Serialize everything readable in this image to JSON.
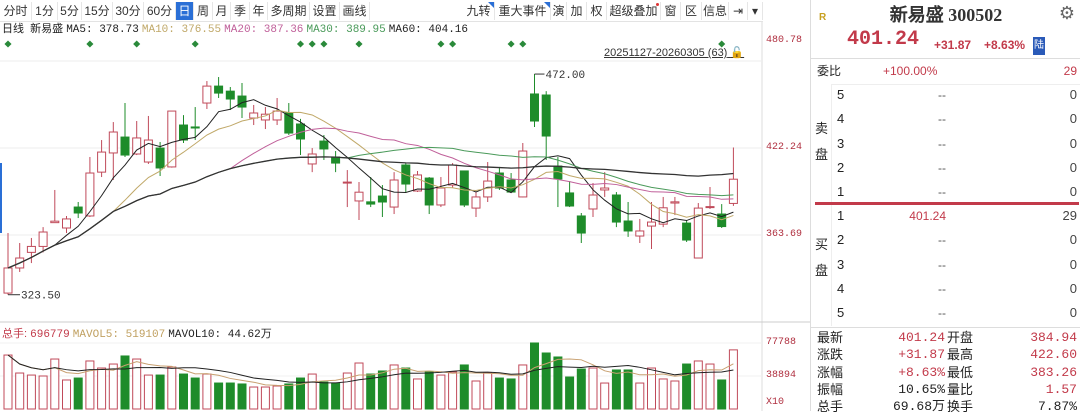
{
  "toolbar": {
    "left_tabs": [
      {
        "label": "分时",
        "w": 32
      },
      {
        "label": "1分",
        "w": 26
      },
      {
        "label": "5分",
        "w": 24
      },
      {
        "label": "15分",
        "w": 31
      },
      {
        "label": "30分",
        "w": 31
      },
      {
        "label": "60分",
        "w": 32
      },
      {
        "label": "日",
        "w": 18,
        "selected": true
      },
      {
        "label": "周",
        "w": 19
      },
      {
        "label": "月",
        "w": 18
      },
      {
        "label": "季",
        "w": 19
      },
      {
        "label": "年",
        "w": 18
      },
      {
        "label": "多周期",
        "w": 42
      },
      {
        "label": "设置",
        "w": 30
      },
      {
        "label": "画线",
        "w": 30
      }
    ],
    "right_tabs": [
      {
        "label": "九转",
        "w": 32,
        "flag": true
      },
      {
        "label": "重大事件",
        "w": 56,
        "flag": true
      },
      {
        "label": "演",
        "w": 16
      },
      {
        "label": "加",
        "w": 20
      },
      {
        "label": "权",
        "w": 20
      },
      {
        "label": "超级叠加",
        "w": 54,
        "dot": true
      },
      {
        "label": "窗",
        "w": 20
      },
      {
        "label": "区",
        "w": 21
      },
      {
        "label": "信息",
        "w": 27
      },
      {
        "label": "⇥",
        "w": 19
      },
      {
        "label": "▾",
        "w": 15
      }
    ]
  },
  "legend": {
    "period": "日线",
    "name": "新易盛",
    "ma5_label": "MA5:",
    "ma5": "378.73",
    "ma10_label": "MA10:",
    "ma10": "376.55",
    "ma20_label": "MA20:",
    "ma20": "387.36",
    "ma30_label": "MA30:",
    "ma30": "389.95",
    "ma60_label": "MA60:",
    "ma60": "404.16"
  },
  "range_label": "20251127-20260305 (63)",
  "volume_legend": {
    "total_label": "总手:",
    "total": "696779",
    "mavol5_label": "MAVOL5:",
    "mavol5": "519107",
    "mavol10_label": "MAVOL10:",
    "mavol10": "44.62万"
  },
  "colors": {
    "up": "#c04a5a",
    "down": "#1e8c2a",
    "ma5": "#222222",
    "ma10": "#c0a868",
    "ma20": "#c0609a",
    "ma30": "#4a9a5a",
    "ma60": "#333333",
    "accent": "#2a6fd6"
  },
  "chart_data": {
    "type": "candlestick",
    "price_ticks": [
      "480.78",
      "422.24",
      "363.69"
    ],
    "volume_ticks": [
      "77788",
      "38894",
      "X10"
    ],
    "high_label": "472.00",
    "low_label": "323.50",
    "candles": [
      [
        324.6,
        365,
        323.5,
        341.5
      ],
      [
        341.5,
        358.3,
        338.8,
        348.2
      ],
      [
        352,
        361.7,
        344.8,
        356
      ],
      [
        356,
        369,
        352,
        365.7
      ],
      [
        372,
        394,
        372,
        373
      ],
      [
        368.4,
        376.5,
        365,
        374.5
      ],
      [
        382.5,
        385.9,
        375.1,
        378.5
      ],
      [
        376.5,
        416.2,
        375.8,
        405.4
      ],
      [
        406,
        427.6,
        402.7,
        419.5
      ],
      [
        418.9,
        439.7,
        400.7,
        433
      ],
      [
        429.6,
        452.5,
        416.2,
        417.5
      ],
      [
        418.2,
        440.4,
        417.5,
        429
      ],
      [
        412.8,
        443.8,
        411.5,
        427.6
      ],
      [
        422.2,
        426.3,
        403.4,
        408.8
      ],
      [
        409.5,
        447.1,
        409,
        447.1
      ],
      [
        437.7,
        444.4,
        425.6,
        427.6
      ],
      [
        436.4,
        449.8,
        427.6,
        435.7
      ],
      [
        452.5,
        467.3,
        448.5,
        463.9
      ],
      [
        463.9,
        470,
        455.9,
        459.2
      ],
      [
        460.5,
        463.3,
        447.8,
        455.2
      ],
      [
        457.2,
        466,
        442.4,
        449.8
      ],
      [
        442.4,
        451.2,
        437.7,
        445.8
      ],
      [
        441.1,
        449.8,
        435,
        445
      ],
      [
        441.1,
        455.9,
        437.7,
        447.1
      ],
      [
        445.8,
        452.5,
        431,
        432.3
      ],
      [
        438.4,
        441.8,
        417.5,
        428.3
      ],
      [
        411.5,
        422.2,
        406,
        418.2
      ],
      [
        426.9,
        431,
        414.2,
        421.6
      ],
      [
        416.2,
        420.2,
        406,
        412.1
      ],
      [
        398.7,
        407.4,
        382.5,
        399.3
      ],
      [
        386.6,
        399.4,
        373.8,
        392.5
      ],
      [
        386,
        402.7,
        382.5,
        384.5
      ],
      [
        389.9,
        397.3,
        375.8,
        385.9
      ],
      [
        382.5,
        406,
        377.8,
        400.7
      ],
      [
        410.8,
        412.1,
        392.6,
        398
      ],
      [
        393.3,
        406.8,
        392.6,
        404.1
      ],
      [
        402,
        402.7,
        377.8,
        383.9
      ],
      [
        383.9,
        402.7,
        382.5,
        395.3
      ],
      [
        397.3,
        412.1,
        395.3,
        410.8
      ],
      [
        406.8,
        406.8,
        382.5,
        383.9
      ],
      [
        381.8,
        392.6,
        375.8,
        389.3
      ],
      [
        389.3,
        412.8,
        385.9,
        400
      ],
      [
        405.4,
        409.5,
        394,
        395.3
      ],
      [
        400.7,
        405.4,
        392.6,
        392.6
      ],
      [
        389.3,
        425.6,
        389,
        420.2
      ],
      [
        458.6,
        472,
        436.4,
        440.4
      ],
      [
        457.9,
        460.5,
        414.2,
        430.3
      ],
      [
        410.1,
        416.2,
        382.5,
        401.4
      ],
      [
        392,
        400,
        382.5,
        383.2
      ],
      [
        376.5,
        378.5,
        358.3,
        365
      ],
      [
        381.2,
        398.7,
        375.8,
        390.6
      ],
      [
        394,
        406,
        389.3,
        395.3
      ],
      [
        390.6,
        392.6,
        369,
        372.4
      ],
      [
        373.1,
        385.9,
        362.4,
        366.4
      ],
      [
        363,
        374.5,
        358.3,
        366.4
      ],
      [
        369.7,
        385.9,
        354.3,
        372.4
      ],
      [
        371,
        389.3,
        369,
        382
      ],
      [
        385.2,
        389.3,
        377.1,
        386
      ],
      [
        371.7,
        373.8,
        359,
        360.3
      ],
      [
        348.2,
        385.2,
        348,
        381.8
      ],
      [
        382.5,
        396,
        381.2,
        382.8
      ],
      [
        377.8,
        384.5,
        368.4,
        369.37
      ],
      [
        384.94,
        422.6,
        383.26,
        401.24
      ]
    ],
    "volumes": [
      63600,
      42400,
      40000,
      38900,
      58900,
      34200,
      36500,
      56600,
      48300,
      53000,
      62500,
      58900,
      40000,
      40000,
      49500,
      41200,
      36500,
      41200,
      30600,
      30600,
      29500,
      25900,
      25900,
      27100,
      29500,
      36500,
      41200,
      31800,
      30600,
      42400,
      54200,
      41200,
      44800,
      51900,
      48300,
      35400,
      43600,
      40000,
      43600,
      51900,
      33000,
      42400,
      36500,
      35400,
      51900,
      77800,
      66000,
      61300,
      37700,
      47100,
      48300,
      30600,
      46000,
      46000,
      30600,
      48300,
      35400,
      33000,
      53000,
      56600,
      53000,
      34200,
      69678
    ]
  },
  "quote": {
    "badge": "R",
    "title": "新易盛 300502",
    "price": "401.24",
    "change": "+31.87",
    "pct": "+8.63%",
    "market_tag": "陆",
    "weibi_label": "委比",
    "weibi": "+100.00%",
    "weibi_vol": "29",
    "sell_label": "卖盘",
    "buy_label": "买盘",
    "sell": [
      {
        "lvl": "5",
        "price": "--",
        "vol": "0"
      },
      {
        "lvl": "4",
        "price": "--",
        "vol": "0"
      },
      {
        "lvl": "3",
        "price": "--",
        "vol": "0"
      },
      {
        "lvl": "2",
        "price": "--",
        "vol": "0"
      },
      {
        "lvl": "1",
        "price": "--",
        "vol": "0"
      }
    ],
    "buy": [
      {
        "lvl": "1",
        "price": "401.24",
        "vol": "29"
      },
      {
        "lvl": "2",
        "price": "--",
        "vol": "0"
      },
      {
        "lvl": "3",
        "price": "--",
        "vol": "0"
      },
      {
        "lvl": "4",
        "price": "--",
        "vol": "0"
      },
      {
        "lvl": "5",
        "price": "--",
        "vol": "0"
      }
    ],
    "stats": [
      {
        "l1": "最新",
        "v1": "401.24",
        "l2": "开盘",
        "v2": "384.94",
        "c1": "red",
        "c2": "red"
      },
      {
        "l1": "涨跌",
        "v1": "+31.87",
        "l2": "最高",
        "v2": "422.60",
        "c1": "red",
        "c2": "red"
      },
      {
        "l1": "涨幅",
        "v1": "+8.63%",
        "l2": "最低",
        "v2": "383.26",
        "c1": "red",
        "c2": "red"
      },
      {
        "l1": "振幅",
        "v1": "10.65%",
        "l2": "量比",
        "v2": "1.57",
        "c1": "",
        "c2": "red"
      },
      {
        "l1": "总手",
        "v1": "69.68万",
        "l2": "换手",
        "v2": "7.87%",
        "c1": "",
        "c2": ""
      }
    ]
  }
}
